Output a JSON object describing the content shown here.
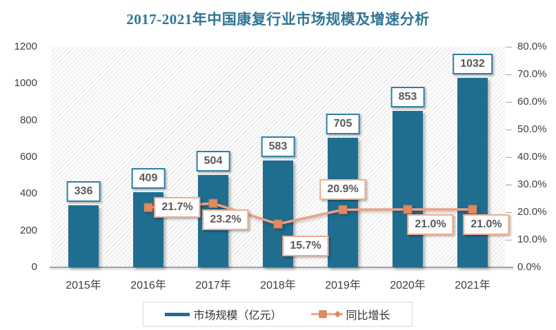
{
  "title": "2017-2021年中国康复行业市场规模及增速分析",
  "chart_data": {
    "type": "combo-bar-line",
    "title": "2017-2021年中国康复行业市场规模及增速分析",
    "categories": [
      "2015年",
      "2016年",
      "2017年",
      "2018年",
      "2019年",
      "2020年",
      "2021年"
    ],
    "series": [
      {
        "name": "市场规模（亿元）",
        "type": "bar",
        "axis": "left",
        "values": [
          336,
          409,
          504,
          583,
          705,
          853,
          1032
        ],
        "labels": [
          "336",
          "409",
          "504",
          "583",
          "705",
          "853",
          "1032"
        ]
      },
      {
        "name": "同比增长",
        "type": "line",
        "axis": "right",
        "marker": "square",
        "values": [
          null,
          21.7,
          23.2,
          15.7,
          20.9,
          21.0,
          21.0
        ],
        "labels": [
          "",
          "21.7%",
          "23.2%",
          "15.7%",
          "20.9%",
          "21.0%",
          "21.0%"
        ]
      }
    ],
    "left_axis": {
      "min": 0,
      "max": 1200,
      "step": 200,
      "tick_labels": [
        "0",
        "200",
        "400",
        "600",
        "800",
        "1000",
        "1200"
      ]
    },
    "right_axis": {
      "min": 0,
      "max": 80,
      "step": 10,
      "tick_labels": [
        "0.0%",
        "10.0%",
        "20.0%",
        "30.0%",
        "40.0%",
        "50.0%",
        "60.0%",
        "70.0%",
        "80.0%"
      ]
    },
    "legend": {
      "position": "bottom",
      "items": [
        "市场规模（亿元）",
        "同比增长"
      ]
    },
    "grid": false,
    "plot_background": "diagonal-hatch"
  },
  "colors": {
    "title": "#2F7495",
    "bar": "#1F6E90",
    "bar_label_border": "#2E7FA6",
    "line": "#EDA184",
    "line_marker_fill": "#E08A62",
    "line_marker_stroke": "#CC7347",
    "line_label_border": "#F2AC90",
    "value_text": "#595959",
    "axis_text": "#3F3F3F",
    "axis_line": "#A3A3A3",
    "legend_border": "#D9D9D9"
  }
}
